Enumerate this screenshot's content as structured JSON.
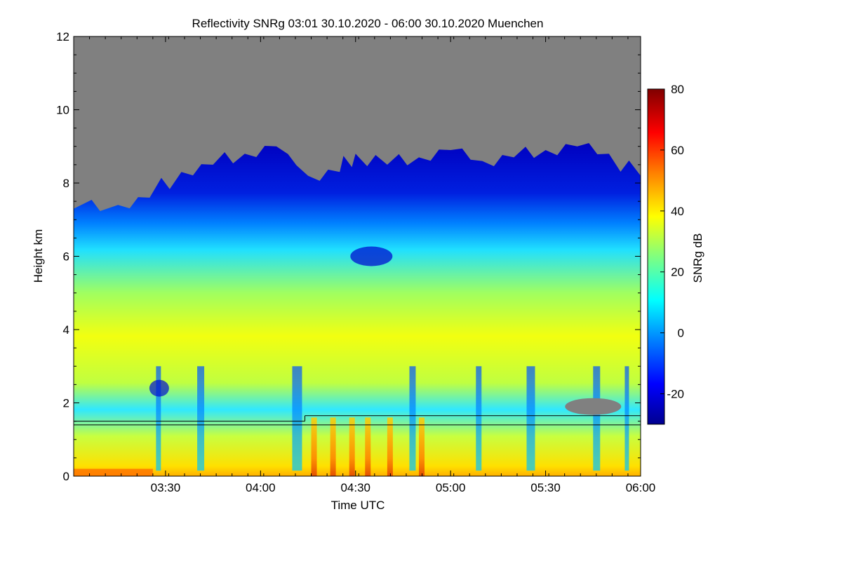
{
  "chart_data": {
    "type": "heatmap",
    "title": "Reflectivity SNRg   03:01 30.10.2020 - 06:00 30.10.2020 Muenchen",
    "xlabel": "Time UTC",
    "ylabel": "Height km",
    "colorbar_label": "SNRg dB",
    "xlim": [
      "03:01",
      "06:00"
    ],
    "x_ticks": [
      "03:30",
      "04:00",
      "04:30",
      "05:00",
      "05:30",
      "06:00"
    ],
    "ylim": [
      0,
      12
    ],
    "y_ticks": [
      "0",
      "2",
      "4",
      "6",
      "8",
      "10",
      "12"
    ],
    "color_range": [
      -30,
      80
    ],
    "colorbar_ticks": [
      "-20",
      "0",
      "20",
      "40",
      "60",
      "80"
    ],
    "no_data_color": "#808080",
    "colormap": [
      "#00008f",
      "#0000ff",
      "#0080ff",
      "#00ffff",
      "#80ff80",
      "#ffff00",
      "#ff8000",
      "#ff0000",
      "#800000"
    ],
    "cloud_top_profile": [
      {
        "time": "03:01",
        "top_km": 7.3
      },
      {
        "time": "03:15",
        "top_km": 7.4
      },
      {
        "time": "03:25",
        "top_km": 7.6
      },
      {
        "time": "03:35",
        "top_km": 8.3
      },
      {
        "time": "03:45",
        "top_km": 8.5
      },
      {
        "time": "03:55",
        "top_km": 8.8
      },
      {
        "time": "04:05",
        "top_km": 9.0
      },
      {
        "time": "04:15",
        "top_km": 8.2
      },
      {
        "time": "04:25",
        "top_km": 8.3
      },
      {
        "time": "04:30",
        "top_km": 8.8
      },
      {
        "time": "04:40",
        "top_km": 8.5
      },
      {
        "time": "04:50",
        "top_km": 8.7
      },
      {
        "time": "05:00",
        "top_km": 8.9
      },
      {
        "time": "05:10",
        "top_km": 8.6
      },
      {
        "time": "05:20",
        "top_km": 8.7
      },
      {
        "time": "05:30",
        "top_km": 8.9
      },
      {
        "time": "05:40",
        "top_km": 9.0
      },
      {
        "time": "05:50",
        "top_km": 8.8
      },
      {
        "time": "06:00",
        "top_km": 8.2
      }
    ],
    "boundary_lines": [
      {
        "time_start": "03:01",
        "time_end": "06:00",
        "height_km": 1.4
      },
      {
        "time_start": "03:01",
        "time_end": "04:14",
        "height_km": 1.5
      },
      {
        "time_start": "04:14",
        "time_end": "06:00",
        "height_km": 1.65
      }
    ]
  }
}
